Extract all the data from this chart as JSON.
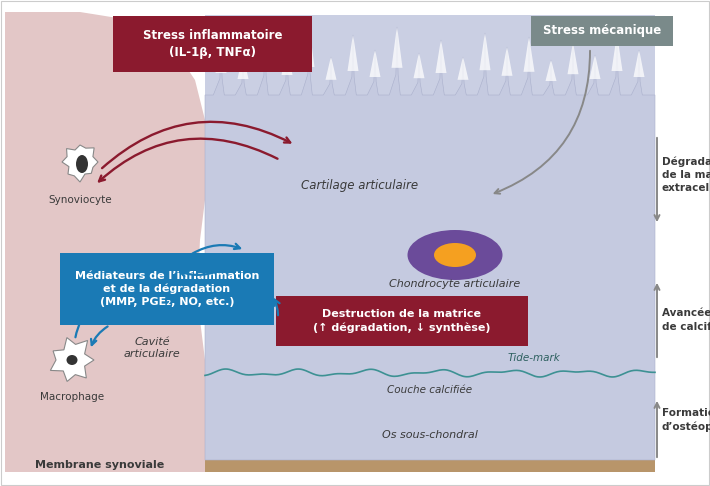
{
  "bg_color": "#ffffff",
  "synovial_color": "#cc9999",
  "cartilage_color": "#c5cae0",
  "subchondral_color": "#b8956a",
  "calcified_color": "#c9aa7c",
  "tidemark_color": "#2e8b8b",
  "stress_inflam_box_color": "#8b1a2e",
  "stress_inflam_line1": "Stress inflammatoire",
  "stress_inflam_line2": "(IL-1β, TNFα)",
  "stress_mec_box_color": "#7a8a8a",
  "stress_mec_text": "Stress mécanique",
  "mediateurs_box_color": "#1a7ab5",
  "mediateurs_line1": "Médiateurs de l’inflammation",
  "mediateurs_line2": "et de la dégradation",
  "mediateurs_line3": "(MMP, PGE₂, NO, etc.)",
  "destruction_line1": "Destruction de la matrice",
  "destruction_line2": "(↑ dégradation, ↓ synthèse)",
  "destruction_box_color": "#8b1a2e",
  "label_cartilage": "Cartilage articulaire",
  "label_chondrocyte": "Chondrocyte articulaire",
  "label_synoviocyte": "Synoviocyte",
  "label_macrophage": "Macrophage",
  "label_cavite": "Cavité\narticulaire",
  "label_membrane": "Membrane synoviale",
  "label_tidemark": "Tide-mark",
  "label_couche": "Couche calcifiée",
  "label_os": "Os sous-chondral",
  "label_degradation": "Dégradation\nde la matrice\nextracellulaire",
  "label_avancee": "Avancée du front\nde calcification",
  "label_formation": "Formation\nd’ostéophytes",
  "dark_red": "#8b1a2e",
  "blue": "#1a7ab5",
  "chondrocyte_body": "#6b4b9a",
  "chondrocyte_nucleus": "#f5a020",
  "text_dark": "#3a3a3a"
}
